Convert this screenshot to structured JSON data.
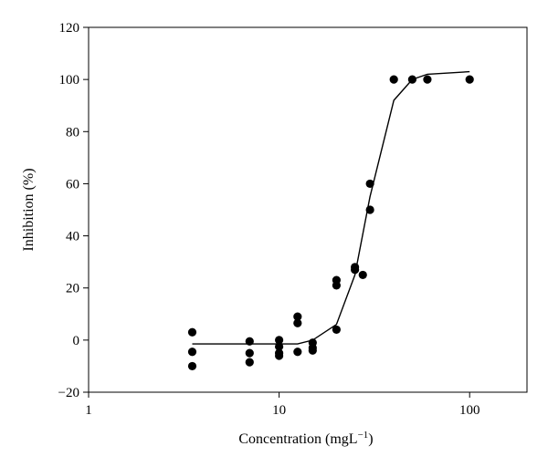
{
  "chart_data": {
    "type": "scatter",
    "xscale": "log",
    "xlim": [
      1,
      200
    ],
    "ylim": [
      -20,
      120
    ],
    "xticks": [
      1,
      10,
      100
    ],
    "xtick_labels": [
      "1",
      "10",
      "100"
    ],
    "yticks": [
      -20,
      0,
      20,
      40,
      60,
      80,
      100,
      120
    ],
    "ytick_labels": [
      "−20",
      "0",
      "20",
      "40",
      "60",
      "80",
      "100",
      "120"
    ],
    "xlabel_main": "Concentration (mgL",
    "xlabel_sup": "−1",
    "xlabel_close": ")",
    "ylabel": "Inhibition (%)",
    "grid": false,
    "legend": "none",
    "marker_color": "#000000",
    "line_color": "#000000",
    "points": [
      {
        "x": 3.5,
        "y": 3
      },
      {
        "x": 3.5,
        "y": -4.5
      },
      {
        "x": 3.5,
        "y": -10
      },
      {
        "x": 7,
        "y": -0.5
      },
      {
        "x": 7,
        "y": -5
      },
      {
        "x": 7,
        "y": -8.5
      },
      {
        "x": 10,
        "y": 0
      },
      {
        "x": 10,
        "y": -2.5
      },
      {
        "x": 10,
        "y": -5
      },
      {
        "x": 10,
        "y": -6
      },
      {
        "x": 12.5,
        "y": 9
      },
      {
        "x": 12.5,
        "y": 6.5
      },
      {
        "x": 12.5,
        "y": -4.5
      },
      {
        "x": 15,
        "y": -1
      },
      {
        "x": 15,
        "y": -3
      },
      {
        "x": 15,
        "y": -4
      },
      {
        "x": 20,
        "y": 23
      },
      {
        "x": 20,
        "y": 21
      },
      {
        "x": 20,
        "y": 4
      },
      {
        "x": 25,
        "y": 28
      },
      {
        "x": 25,
        "y": 27
      },
      {
        "x": 27.5,
        "y": 25
      },
      {
        "x": 30,
        "y": 60
      },
      {
        "x": 30,
        "y": 50
      },
      {
        "x": 40,
        "y": 100
      },
      {
        "x": 50,
        "y": 100
      },
      {
        "x": 60,
        "y": 100
      },
      {
        "x": 100,
        "y": 100
      }
    ],
    "fit_line": [
      {
        "x": 3.5,
        "y": -1.5
      },
      {
        "x": 7,
        "y": -1.5
      },
      {
        "x": 10,
        "y": -1.5
      },
      {
        "x": 12.5,
        "y": -1.5
      },
      {
        "x": 15,
        "y": 0
      },
      {
        "x": 20,
        "y": 6
      },
      {
        "x": 25,
        "y": 25
      },
      {
        "x": 30,
        "y": 55
      },
      {
        "x": 40,
        "y": 92
      },
      {
        "x": 50,
        "y": 100
      },
      {
        "x": 60,
        "y": 102
      },
      {
        "x": 100,
        "y": 103
      }
    ]
  }
}
